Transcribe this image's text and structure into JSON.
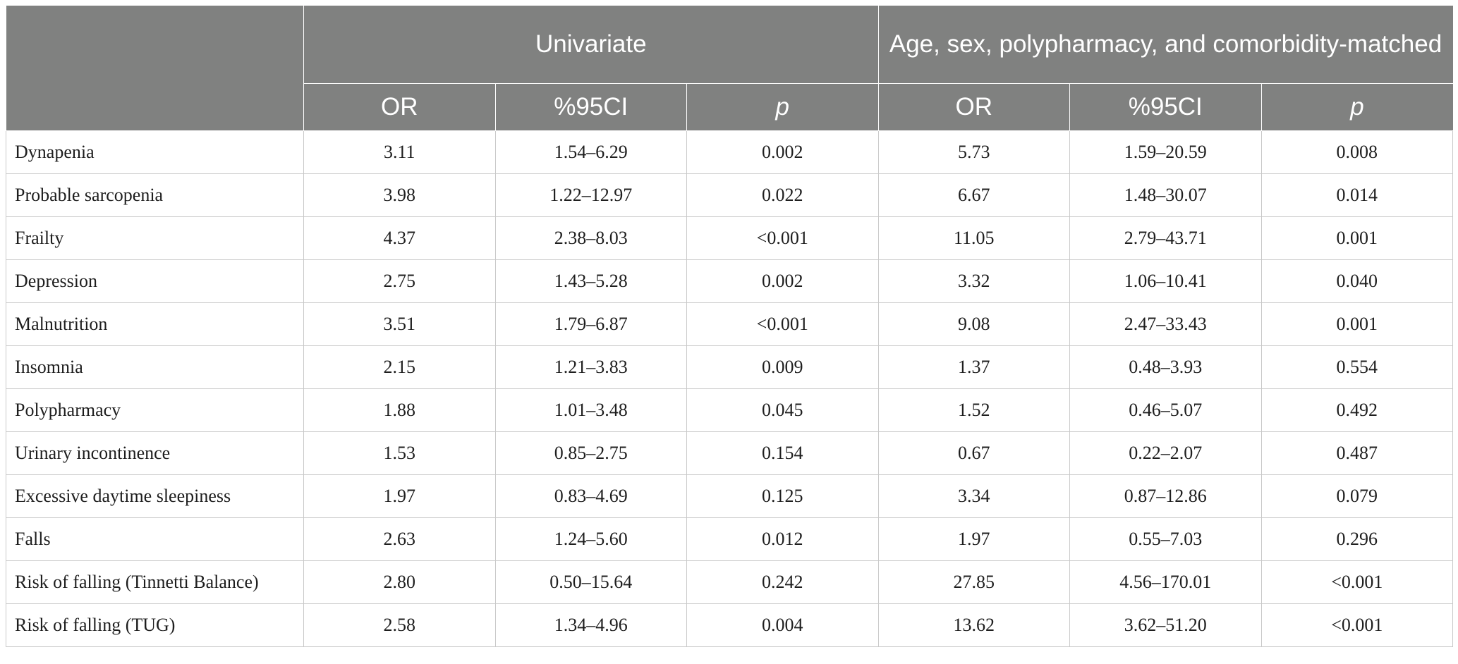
{
  "header": {
    "group_univariate": "Univariate",
    "group_matched": "Age, sex, polypharmacy, and comorbidity-matched",
    "col_or": "OR",
    "col_ci": "%95CI",
    "col_p": "p"
  },
  "rows": [
    {
      "label": "Dynapenia",
      "u_or": "3.11",
      "u_ci": "1.54–6.29",
      "u_p": "0.002",
      "m_or": "5.73",
      "m_ci": "1.59–20.59",
      "m_p": "0.008"
    },
    {
      "label": "Probable sarcopenia",
      "u_or": "3.98",
      "u_ci": "1.22–12.97",
      "u_p": "0.022",
      "m_or": "6.67",
      "m_ci": "1.48–30.07",
      "m_p": "0.014"
    },
    {
      "label": "Frailty",
      "u_or": "4.37",
      "u_ci": "2.38–8.03",
      "u_p": "<0.001",
      "m_or": "11.05",
      "m_ci": "2.79–43.71",
      "m_p": "0.001"
    },
    {
      "label": "Depression",
      "u_or": "2.75",
      "u_ci": "1.43–5.28",
      "u_p": "0.002",
      "m_or": "3.32",
      "m_ci": "1.06–10.41",
      "m_p": "0.040"
    },
    {
      "label": "Malnutrition",
      "u_or": "3.51",
      "u_ci": "1.79–6.87",
      "u_p": "<0.001",
      "m_or": "9.08",
      "m_ci": "2.47–33.43",
      "m_p": "0.001"
    },
    {
      "label": "Insomnia",
      "u_or": "2.15",
      "u_ci": "1.21–3.83",
      "u_p": "0.009",
      "m_or": "1.37",
      "m_ci": "0.48–3.93",
      "m_p": "0.554"
    },
    {
      "label": "Polypharmacy",
      "u_or": "1.88",
      "u_ci": "1.01–3.48",
      "u_p": "0.045",
      "m_or": "1.52",
      "m_ci": "0.46–5.07",
      "m_p": "0.492"
    },
    {
      "label": "Urinary incontinence",
      "u_or": "1.53",
      "u_ci": "0.85–2.75",
      "u_p": "0.154",
      "m_or": "0.67",
      "m_ci": "0.22–2.07",
      "m_p": "0.487"
    },
    {
      "label": "Excessive daytime sleepiness",
      "u_or": "1.97",
      "u_ci": "0.83–4.69",
      "u_p": "0.125",
      "m_or": "3.34",
      "m_ci": "0.87–12.86",
      "m_p": "0.079"
    },
    {
      "label": "Falls",
      "u_or": "2.63",
      "u_ci": "1.24–5.60",
      "u_p": "0.012",
      "m_or": "1.97",
      "m_ci": "0.55–7.03",
      "m_p": "0.296"
    },
    {
      "label": "Risk of falling (Tinnetti Balance)",
      "u_or": "2.80",
      "u_ci": "0.50–15.64",
      "u_p": "0.242",
      "m_or": "27.85",
      "m_ci": "4.56–170.01",
      "m_p": "<0.001"
    },
    {
      "label": "Risk of falling (TUG)",
      "u_or": "2.58",
      "u_ci": "1.34–4.96",
      "u_p": "0.004",
      "m_or": "13.62",
      "m_ci": "3.62–51.20",
      "m_p": "<0.001"
    }
  ]
}
